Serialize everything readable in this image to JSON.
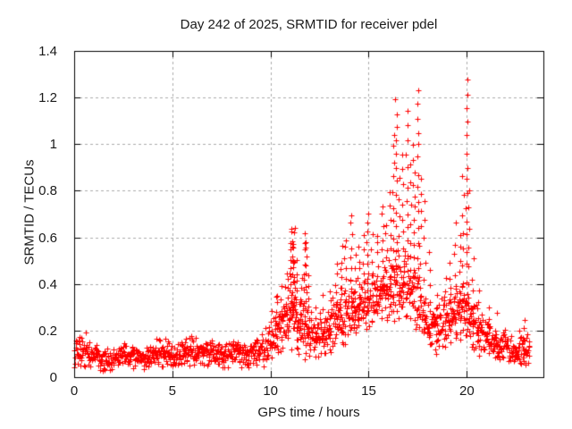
{
  "page": {
    "background": "#ffffff",
    "text_color": "#1a1a1a"
  },
  "chart_data": {
    "type": "scatter",
    "title": "Day 242 of 2025, SRMTID for receiver pdel",
    "xlabel": "GPS time / hours",
    "ylabel": "SRMTID / TECUs",
    "xlim": [
      0,
      23.9
    ],
    "ylim": [
      0,
      1.4
    ],
    "xticks": [
      {
        "v": 0,
        "label": "0"
      },
      {
        "v": 5,
        "label": "5"
      },
      {
        "v": 10,
        "label": "10"
      },
      {
        "v": 15,
        "label": "15"
      },
      {
        "v": 20,
        "label": "20"
      }
    ],
    "yticks": [
      {
        "v": 0,
        "label": "0"
      },
      {
        "v": 0.2,
        "label": "0.2"
      },
      {
        "v": 0.4,
        "label": "0.4"
      },
      {
        "v": 0.6,
        "label": "0.6"
      },
      {
        "v": 0.8,
        "label": "0.8"
      },
      {
        "v": 1,
        "label": "1"
      },
      {
        "v": 1.2,
        "label": "1.2"
      },
      {
        "v": 1.4,
        "label": "1.4"
      }
    ],
    "grid": true,
    "grid_style": "dashed",
    "legend": "none",
    "marker": {
      "shape": "plus",
      "size": 7,
      "color": "#ff0000"
    },
    "axis_color": "#000000",
    "grid_color": "#ababab",
    "seed": 242,
    "points_per_hour": 62,
    "representation": "envelope",
    "baseline_segments": [
      [
        0.0,
        0.5,
        0.03,
        0.17
      ],
      [
        0.5,
        1.0,
        0.04,
        0.21
      ],
      [
        1.0,
        1.5,
        0.03,
        0.15
      ],
      [
        1.5,
        2.2,
        0.02,
        0.12
      ],
      [
        2.2,
        2.8,
        0.03,
        0.14
      ],
      [
        2.8,
        3.6,
        0.03,
        0.16
      ],
      [
        3.6,
        4.4,
        0.03,
        0.14
      ],
      [
        4.4,
        5.1,
        0.04,
        0.19
      ],
      [
        5.1,
        5.8,
        0.03,
        0.14
      ],
      [
        5.8,
        6.5,
        0.04,
        0.19
      ],
      [
        6.5,
        7.0,
        0.04,
        0.16
      ],
      [
        7.0,
        7.6,
        0.04,
        0.17
      ],
      [
        7.6,
        8.2,
        0.03,
        0.15
      ],
      [
        8.2,
        8.8,
        0.04,
        0.19
      ],
      [
        8.8,
        9.2,
        0.03,
        0.14
      ],
      [
        9.2,
        9.7,
        0.04,
        0.18
      ],
      [
        9.7,
        10.0,
        0.04,
        0.22
      ],
      [
        10.0,
        10.5,
        0.05,
        0.3
      ],
      [
        10.5,
        11.0,
        0.08,
        0.4
      ],
      [
        11.0,
        11.5,
        0.1,
        0.45
      ],
      [
        11.5,
        12.0,
        0.08,
        0.38
      ],
      [
        12.0,
        12.5,
        0.06,
        0.3
      ],
      [
        12.5,
        13.0,
        0.08,
        0.3
      ],
      [
        13.0,
        13.5,
        0.1,
        0.35
      ],
      [
        13.5,
        14.0,
        0.12,
        0.4
      ],
      [
        14.0,
        14.5,
        0.15,
        0.42
      ],
      [
        14.5,
        15.0,
        0.15,
        0.45
      ],
      [
        15.0,
        15.5,
        0.17,
        0.48
      ],
      [
        15.5,
        16.0,
        0.18,
        0.5
      ],
      [
        16.0,
        16.5,
        0.2,
        0.55
      ],
      [
        16.5,
        17.0,
        0.2,
        0.6
      ],
      [
        17.0,
        17.5,
        0.22,
        0.6
      ],
      [
        17.5,
        18.0,
        0.15,
        0.45
      ],
      [
        18.0,
        18.5,
        0.1,
        0.35
      ],
      [
        18.5,
        19.0,
        0.1,
        0.32
      ],
      [
        19.0,
        19.5,
        0.12,
        0.38
      ],
      [
        19.5,
        20.0,
        0.15,
        0.45
      ],
      [
        20.0,
        20.4,
        0.15,
        0.42
      ],
      [
        20.4,
        20.9,
        0.1,
        0.32
      ],
      [
        20.9,
        21.4,
        0.09,
        0.28
      ],
      [
        21.4,
        21.9,
        0.07,
        0.25
      ],
      [
        21.9,
        22.4,
        0.06,
        0.22
      ],
      [
        22.4,
        22.8,
        0.05,
        0.2
      ],
      [
        22.8,
        23.2,
        0.04,
        0.22
      ]
    ],
    "spike_columns": [
      [
        10.3,
        0.12,
        0.35,
        7
      ],
      [
        10.55,
        0.12,
        0.38,
        7
      ],
      [
        10.85,
        0.18,
        0.46,
        8
      ],
      [
        11.0,
        0.25,
        0.58,
        10
      ],
      [
        11.1,
        0.28,
        0.65,
        13
      ],
      [
        11.2,
        0.28,
        0.64,
        12
      ],
      [
        11.35,
        0.2,
        0.5,
        8
      ],
      [
        11.55,
        0.15,
        0.42,
        7
      ],
      [
        11.7,
        0.25,
        0.62,
        10
      ],
      [
        11.82,
        0.28,
        0.58,
        9
      ],
      [
        11.95,
        0.15,
        0.45,
        7
      ],
      [
        12.3,
        0.08,
        0.3,
        5
      ],
      [
        12.7,
        0.1,
        0.35,
        6
      ],
      [
        13.05,
        0.12,
        0.38,
        6
      ],
      [
        13.35,
        0.18,
        0.48,
        8
      ],
      [
        13.6,
        0.2,
        0.55,
        9
      ],
      [
        13.8,
        0.22,
        0.6,
        9
      ],
      [
        14.1,
        0.25,
        0.7,
        11
      ],
      [
        14.3,
        0.2,
        0.52,
        8
      ],
      [
        14.5,
        0.22,
        0.55,
        8
      ],
      [
        14.75,
        0.25,
        0.6,
        8
      ],
      [
        14.95,
        0.3,
        0.7,
        10
      ],
      [
        15.15,
        0.25,
        0.6,
        8
      ],
      [
        15.45,
        0.28,
        0.62,
        8
      ],
      [
        15.7,
        0.3,
        0.74,
        10
      ],
      [
        15.9,
        0.3,
        0.66,
        8
      ],
      [
        16.1,
        0.3,
        0.8,
        9
      ],
      [
        16.25,
        0.35,
        1.05,
        12
      ],
      [
        16.4,
        0.35,
        1.2,
        15
      ],
      [
        16.55,
        0.3,
        0.85,
        8
      ],
      [
        16.75,
        0.35,
        0.95,
        10
      ],
      [
        16.95,
        0.4,
        1.13,
        13
      ],
      [
        17.1,
        0.35,
        0.9,
        8
      ],
      [
        17.3,
        0.45,
        1.0,
        11
      ],
      [
        17.5,
        0.4,
        1.24,
        15
      ],
      [
        17.62,
        0.35,
        0.85,
        8
      ],
      [
        17.85,
        0.25,
        0.75,
        7
      ],
      [
        18.1,
        0.15,
        0.55,
        6
      ],
      [
        18.45,
        0.1,
        0.35,
        5
      ],
      [
        18.9,
        0.12,
        0.42,
        6
      ],
      [
        19.15,
        0.15,
        0.48,
        7
      ],
      [
        19.4,
        0.18,
        0.65,
        8
      ],
      [
        19.65,
        0.2,
        0.62,
        8
      ],
      [
        19.8,
        0.25,
        0.85,
        9
      ],
      [
        20.0,
        0.3,
        1.27,
        17
      ],
      [
        20.1,
        0.25,
        0.8,
        8
      ],
      [
        20.3,
        0.15,
        0.5,
        6
      ],
      [
        20.6,
        0.1,
        0.38,
        5
      ],
      [
        21.1,
        0.1,
        0.3,
        5
      ],
      [
        21.5,
        0.08,
        0.26,
        4
      ],
      [
        22.9,
        0.06,
        0.26,
        5
      ]
    ]
  }
}
